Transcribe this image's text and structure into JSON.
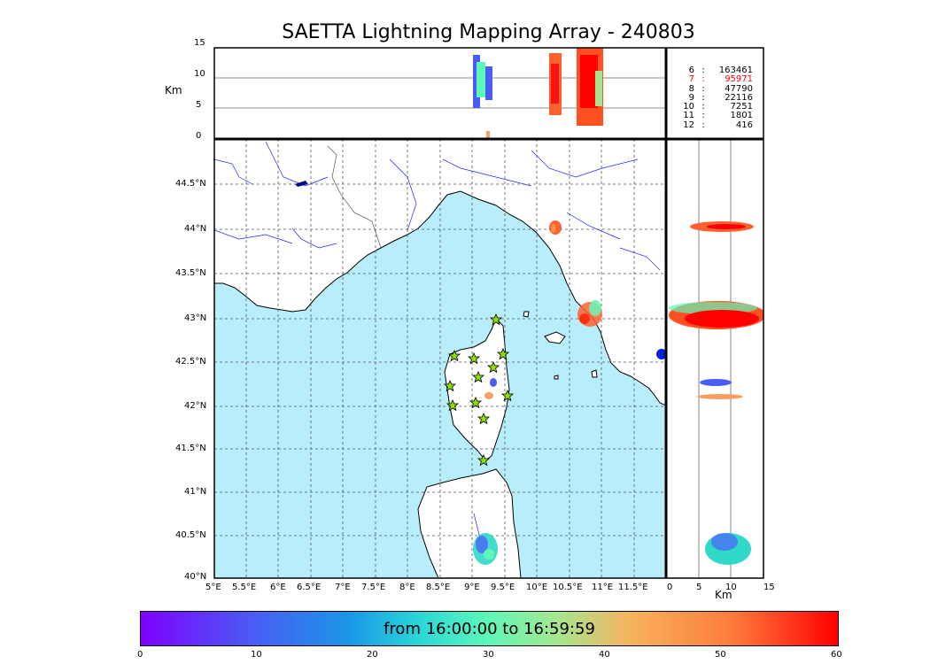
{
  "title": "SAETTA Lightning Mapping Array - 240803",
  "altitude_panel": {
    "ylabel": "Km",
    "yticks": [
      "15",
      "10",
      "5",
      "0"
    ]
  },
  "side_panel": {
    "xlabel": "Km",
    "xticks": [
      "0",
      "5",
      "10",
      "15"
    ]
  },
  "map": {
    "lat_ticks": [
      "44.5°N",
      "44°N",
      "43.5°N",
      "43°N",
      "42.5°N",
      "42°N",
      "41.5°N",
      "41°N",
      "40.5°N",
      "40°N"
    ],
    "lon_ticks": [
      "5°E",
      "5.5°E",
      "6°E",
      "6.5°E",
      "7°E",
      "7.5°E",
      "8°E",
      "8.5°E",
      "9°E",
      "9.5°E",
      "10°E",
      "10.5°E",
      "11°E",
      "11.5°E"
    ],
    "colors": {
      "sea": "#b8eefb",
      "land": "#ffffff",
      "coast": "#000000",
      "rivers": "#0000ff",
      "station": "#8de000"
    }
  },
  "stations_count_table": [
    {
      "k": "6",
      "sep": ":",
      "v": "163461",
      "color": "#000000"
    },
    {
      "k": "7",
      "sep": ":",
      "v": "95971",
      "color": "#ff0000"
    },
    {
      "k": "8",
      "sep": ":",
      "v": "47790",
      "color": "#000000"
    },
    {
      "k": "9",
      "sep": ":",
      "v": "22116",
      "color": "#000000"
    },
    {
      "k": "10",
      "sep": ":",
      "v": "7251",
      "color": "#000000"
    },
    {
      "k": "11",
      "sep": ":",
      "v": "1801",
      "color": "#000000"
    },
    {
      "k": "12",
      "sep": ":",
      "v": "416",
      "color": "#000000"
    }
  ],
  "colorbar": {
    "label": "from 16:00:00 to 16:59:59",
    "ticks": [
      "0",
      "10",
      "20",
      "30",
      "40",
      "50",
      "60"
    ]
  }
}
